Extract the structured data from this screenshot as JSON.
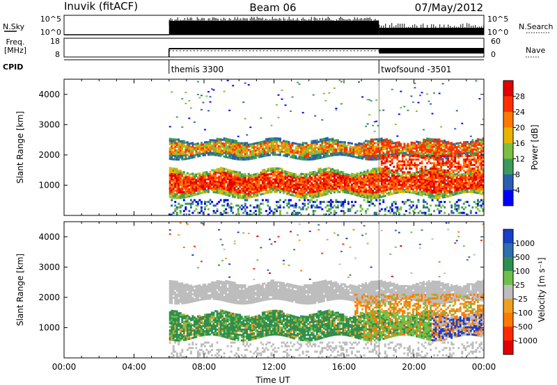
{
  "header": {
    "station": "Inuvik (fitACF)",
    "beam": "Beam 06",
    "date": "07/May/2012"
  },
  "noise_panel": {
    "left_label": "N.Sky",
    "right_label": "N.Search",
    "left_ticks": [
      "10^5",
      "10^0"
    ],
    "right_ticks": [
      "10^5",
      "10^0"
    ]
  },
  "freq_panel": {
    "left_label_line1": "Freq.",
    "left_label_line2": "[MHz]",
    "right_label": "Nave",
    "left_ticks": [
      "18",
      "8"
    ],
    "right_ticks": [
      "60",
      "0"
    ]
  },
  "cpid_panel": {
    "label": "CPID",
    "programs": [
      {
        "name": "themis 3300",
        "start_hour": 6.0
      },
      {
        "name": "twofsound -3501",
        "start_hour": 18.0
      }
    ]
  },
  "chart_data": [
    {
      "type": "heatmap",
      "panel": "power",
      "ylabel": "Slant Range [km]",
      "yticks": [
        "1000",
        "2000",
        "3000",
        "4000"
      ],
      "ylim": [
        0,
        4500
      ],
      "xlim_hours": [
        0,
        24
      ],
      "colorbar_label": "Power [dB]",
      "colorbar_ticks": [
        "4",
        "8",
        "12",
        "16",
        "20",
        "24",
        "28"
      ],
      "colors": [
        "#0000ff",
        "#2a5fb0",
        "#3c9a5a",
        "#7bc043",
        "#e8b400",
        "#ff7800",
        "#ff3000",
        "#e00000"
      ],
      "echo_bands": [
        {
          "range_km": [
            1900,
            2500
          ],
          "x_hours": [
            6,
            24
          ],
          "level_db": 18
        },
        {
          "range_km": [
            700,
            1500
          ],
          "x_hours": [
            6,
            24
          ],
          "level_db": 26
        },
        {
          "range_km": [
            900,
            2200
          ],
          "x_hours": [
            18,
            24
          ],
          "level_db": 24
        }
      ]
    },
    {
      "type": "heatmap",
      "panel": "velocity",
      "ylabel": "Slant Range [km]",
      "yticks": [
        "1000",
        "2000",
        "3000",
        "4000"
      ],
      "ylim": [
        0,
        4500
      ],
      "xlim_hours": [
        0,
        24
      ],
      "xticks": [
        "00:00",
        "04:00",
        "08:00",
        "12:00",
        "16:00",
        "20:00",
        "00:00"
      ],
      "xlabel": "Time UT",
      "colorbar_label": "Velocity [m s⁻¹]",
      "colorbar_ticks": [
        "1000",
        "500",
        "100",
        "25",
        "-25",
        "-100",
        "-500",
        "-1000"
      ],
      "colors": [
        "#1a3fc8",
        "#2e6fae",
        "#2f8f4f",
        "#6fc04a",
        "#bdbdbd",
        "#f0a020",
        "#ff7a00",
        "#ff2a00",
        "#e00000"
      ],
      "echo_bands": [
        {
          "range_km": [
            1900,
            2500
          ],
          "x_hours": [
            6,
            24
          ],
          "velocity": 0
        },
        {
          "range_km": [
            700,
            1500
          ],
          "x_hours": [
            6,
            18
          ],
          "velocity": 300
        },
        {
          "range_km": [
            800,
            2200
          ],
          "x_hours": [
            18,
            24
          ],
          "velocity": -150
        }
      ]
    }
  ]
}
